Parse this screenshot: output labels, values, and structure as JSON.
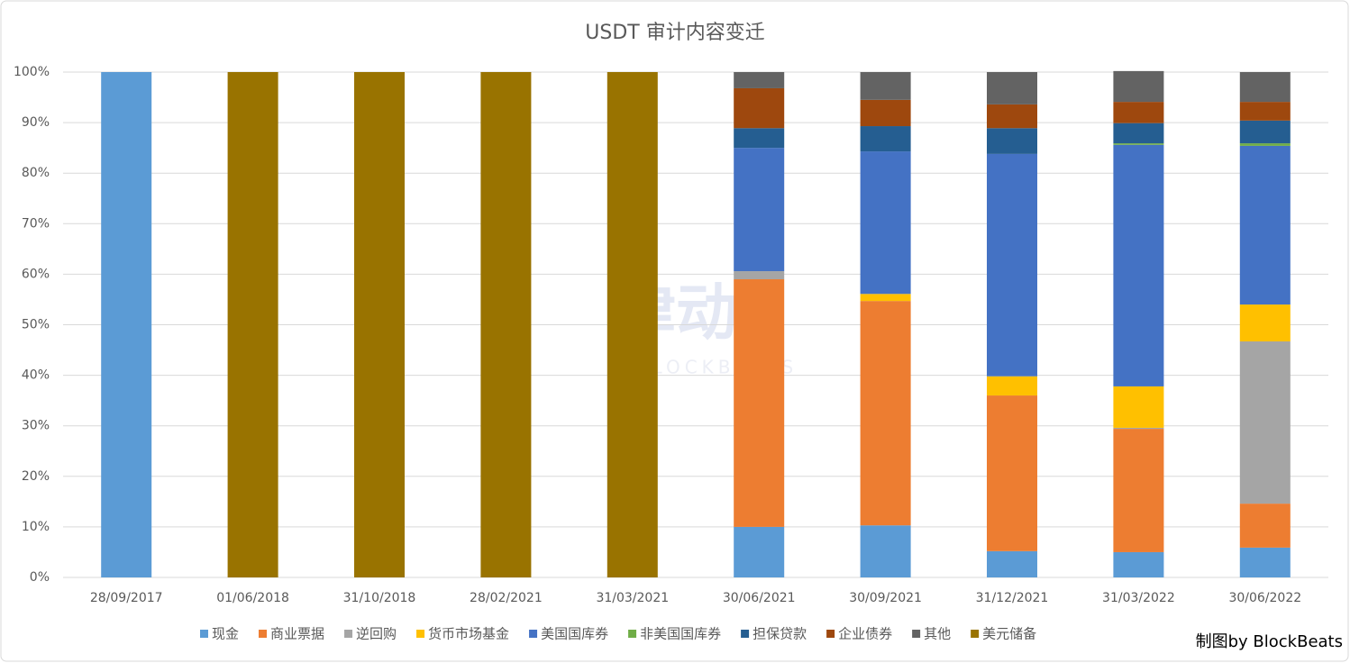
{
  "chart_data": {
    "type": "stacked_bar",
    "title": "USDT 审计内容变迁",
    "categories": [
      "28/09/2017",
      "01/06/2018",
      "31/10/2018",
      "28/02/2021",
      "31/03/2021",
      "30/06/2021",
      "30/09/2021",
      "31/12/2021",
      "31/03/2022",
      "30/06/2022"
    ],
    "series": [
      {
        "name": "现金",
        "color": "#5b9bd5",
        "values": [
          100,
          0,
          0,
          0,
          0,
          10,
          10.3,
          5.2,
          5,
          5.9
        ]
      },
      {
        "name": "商业票据",
        "color": "#ed7d31",
        "values": [
          0,
          0,
          0,
          0,
          0,
          49,
          44.4,
          30.8,
          24.4,
          8.7
        ]
      },
      {
        "name": "逆回购",
        "color": "#a5a5a5",
        "values": [
          0,
          0,
          0,
          0,
          0,
          1.6,
          0,
          0,
          0.2,
          32.1
        ]
      },
      {
        "name": "货币市场基金",
        "color": "#ffc000",
        "values": [
          0,
          0,
          0,
          0,
          0,
          0,
          1.4,
          3.8,
          8.2,
          7.3
        ]
      },
      {
        "name": "美国国库券",
        "color": "#4472c4",
        "values": [
          0,
          0,
          0,
          0,
          0,
          24.4,
          28.2,
          44,
          47.8,
          31.4
        ]
      },
      {
        "name": "非美国国库券",
        "color": "#70ad47",
        "values": [
          0,
          0,
          0,
          0,
          0,
          0,
          0,
          0,
          0.3,
          0.5
        ]
      },
      {
        "name": "担保贷款",
        "color": "#255e91",
        "values": [
          0,
          0,
          0,
          0,
          0,
          3.9,
          5,
          5.1,
          4,
          4.5
        ]
      },
      {
        "name": "企业债券",
        "color": "#9e480e",
        "values": [
          0,
          0,
          0,
          0,
          0,
          7.9,
          5.2,
          4.7,
          4.2,
          3.7
        ]
      },
      {
        "name": "其他",
        "color": "#636363",
        "values": [
          0,
          0,
          0,
          0,
          0,
          3.2,
          5.5,
          6.4,
          6.1,
          5.9
        ]
      },
      {
        "name": "美元储备",
        "color": "#997300",
        "values": [
          0,
          100,
          100,
          100,
          100,
          0,
          0,
          0,
          0,
          0
        ]
      }
    ],
    "ylim": [
      0,
      100
    ],
    "yticks": [
      {
        "value": 0,
        "label": "0%"
      },
      {
        "value": 10,
        "label": "10%"
      },
      {
        "value": 20,
        "label": "20%"
      },
      {
        "value": 30,
        "label": "30%"
      },
      {
        "value": 40,
        "label": "40%"
      },
      {
        "value": 50,
        "label": "50%"
      },
      {
        "value": 60,
        "label": "60%"
      },
      {
        "value": 70,
        "label": "70%"
      },
      {
        "value": 80,
        "label": "80%"
      },
      {
        "value": 90,
        "label": "90%"
      },
      {
        "value": 100,
        "label": "100%"
      }
    ],
    "grid": true,
    "legend": "bottom",
    "credit": "制图by BlockBeats",
    "watermark": [
      "律动",
      "BLOCKBEATS"
    ]
  }
}
